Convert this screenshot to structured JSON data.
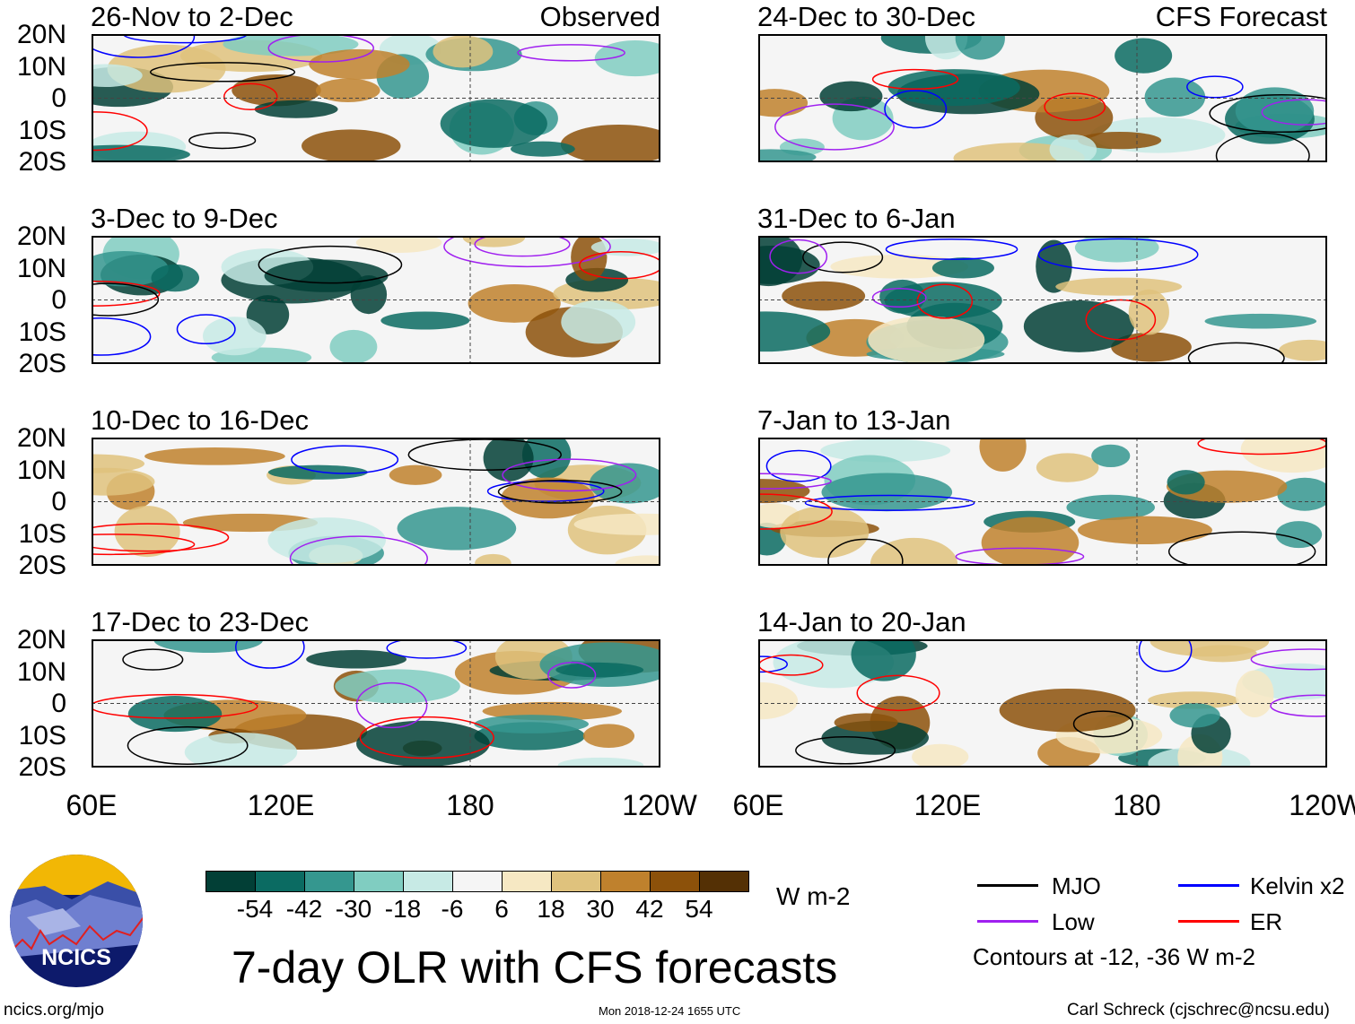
{
  "panels": [
    {
      "title": "26-Nov to 2-Dec",
      "tag": "Observed"
    },
    {
      "title": "24-Dec to 30-Dec",
      "tag": "CFS Forecast"
    },
    {
      "title": "3-Dec to 9-Dec",
      "tag": ""
    },
    {
      "title": "31-Dec to 6-Jan",
      "tag": ""
    },
    {
      "title": "10-Dec to 16-Dec",
      "tag": ""
    },
    {
      "title": "7-Jan to 13-Jan",
      "tag": ""
    },
    {
      "title": "17-Dec to 23-Dec",
      "tag": ""
    },
    {
      "title": "14-Jan to 20-Jan",
      "tag": ""
    }
  ],
  "lat_labels": [
    "20N",
    "10N",
    "0",
    "10S",
    "20S"
  ],
  "lon_labels": [
    "60E",
    "120E",
    "180",
    "120W"
  ],
  "colorbar": {
    "colors": [
      "#023f36",
      "#0b6b62",
      "#35978f",
      "#80cdc1",
      "#c7eae5",
      "#f5f5f5",
      "#f6e8c3",
      "#dfc27d",
      "#bf812d",
      "#8c510a",
      "#543005"
    ],
    "labels": [
      "-54",
      "-42",
      "-30",
      "-18",
      "-6",
      "6",
      "18",
      "30",
      "42",
      "54"
    ],
    "units": "W m-2"
  },
  "title": "7-day OLR with CFS forecasts",
  "legend": {
    "items": [
      {
        "label": "MJO",
        "color": "#000000"
      },
      {
        "label": "Kelvin x2",
        "color": "#0000ff"
      },
      {
        "label": "Low",
        "color": "#a020f0"
      },
      {
        "label": "ER",
        "color": "#ff0000"
      }
    ],
    "note": "Contours at -12, -36 W m-2"
  },
  "logo_text": "NCICS",
  "footer": {
    "left": "ncics.org/mjo",
    "center": "Mon 2018-12-24 1655 UTC",
    "right": "Carl Schreck (cjschrec@ncsu.edu)"
  }
}
